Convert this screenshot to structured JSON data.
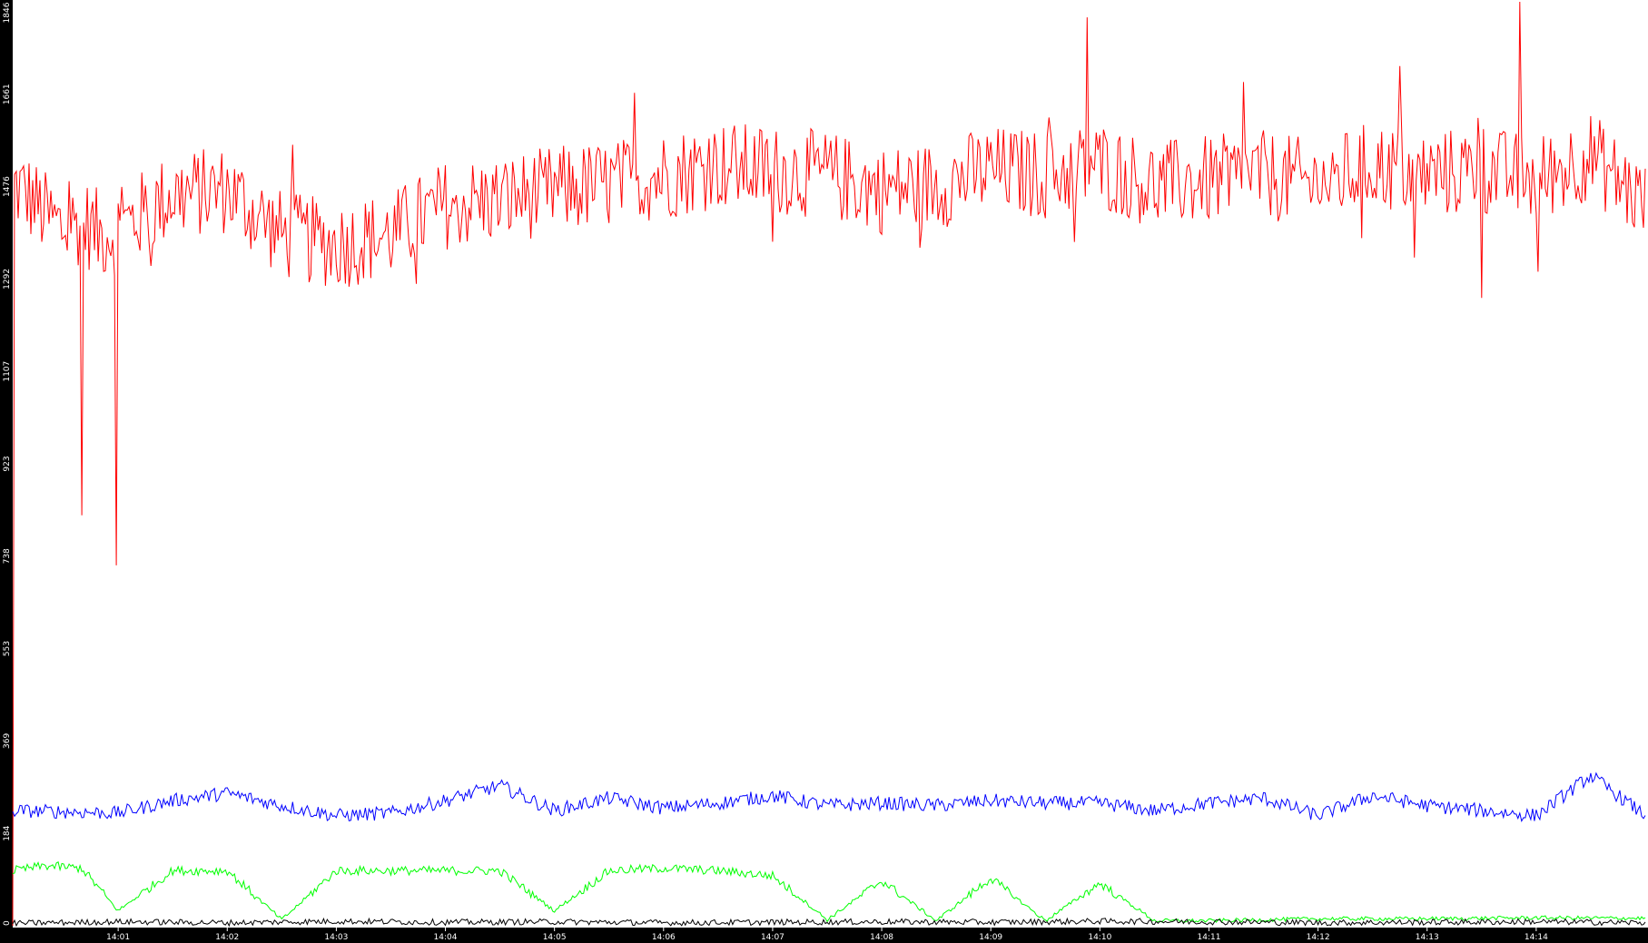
{
  "chart_data": {
    "type": "line",
    "grid": false,
    "legend": "none",
    "background_color": "#ffffff",
    "axis_color": "#000000",
    "y_axis": {
      "ylim": [
        0,
        1846
      ],
      "tick_labels": [
        "0",
        "184",
        "369",
        "553",
        "738",
        "923",
        "1107",
        "1292",
        "1476",
        "1661",
        "1846"
      ]
    },
    "x_axis": {
      "xlim": [
        "14:00:02",
        "14:15:00"
      ],
      "tick_labels": [
        "14:01",
        "14:02",
        "14:03",
        "14:04",
        "14:05",
        "14:06",
        "14:07",
        "14:08",
        "14:09",
        "14:10",
        "14:11",
        "14:12",
        "14:13",
        "14:14"
      ]
    },
    "series": [
      {
        "color": "#ff0000",
        "x": [
          "14:00:02",
          "14:00:10",
          "14:00:20",
          "14:00:30",
          "14:00:40",
          "14:00:50",
          "14:01:00",
          "14:01:30",
          "14:02:00",
          "14:02:30",
          "14:03:00",
          "14:03:30",
          "14:04:00",
          "14:04:30",
          "14:05:00",
          "14:05:30",
          "14:06:00",
          "14:06:30",
          "14:07:00",
          "14:07:30",
          "14:08:00",
          "14:08:30",
          "14:09:00",
          "14:09:30",
          "14:10:00",
          "14:10:30",
          "14:11:00",
          "14:11:30",
          "14:12:00",
          "14:12:30",
          "14:13:00",
          "14:13:30",
          "14:14:00",
          "14:14:30",
          "14:15:00"
        ],
        "values": [
          1480,
          1460,
          1420,
          1390,
          1410,
          1380,
          1390,
          1460,
          1470,
          1380,
          1360,
          1380,
          1440,
          1450,
          1470,
          1480,
          1500,
          1520,
          1510,
          1500,
          1470,
          1480,
          1510,
          1500,
          1520,
          1480,
          1490,
          1500,
          1480,
          1520,
          1500,
          1510,
          1490,
          1540,
          1440
        ],
        "spikes": [
          {
            "x": "14:00:40",
            "value": 820
          },
          {
            "x": "14:00:59",
            "value": 720
          },
          {
            "x": "14:13:51",
            "value": 1846
          },
          {
            "x": "14:09:53",
            "value": 1815
          }
        ]
      },
      {
        "color": "#0000ff",
        "x": [
          "14:00:02",
          "14:00:30",
          "14:01:00",
          "14:01:30",
          "14:02:00",
          "14:02:30",
          "14:03:00",
          "14:03:30",
          "14:04:00",
          "14:04:30",
          "14:05:00",
          "14:05:30",
          "14:06:00",
          "14:06:30",
          "14:07:00",
          "14:07:30",
          "14:08:00",
          "14:08:30",
          "14:09:00",
          "14:09:30",
          "14:10:00",
          "14:10:30",
          "14:11:00",
          "14:11:30",
          "14:12:00",
          "14:12:30",
          "14:13:00",
          "14:13:30",
          "14:14:00",
          "14:14:30",
          "14:15:00"
        ],
        "values": [
          230,
          228,
          225,
          250,
          265,
          240,
          220,
          225,
          250,
          280,
          230,
          255,
          235,
          245,
          260,
          240,
          245,
          240,
          250,
          245,
          245,
          230,
          245,
          255,
          220,
          260,
          240,
          230,
          220,
          300,
          220
        ]
      },
      {
        "color": "#00ff00",
        "x": [
          "14:00:02",
          "14:00:20",
          "14:00:40",
          "14:01:00",
          "14:01:30",
          "14:02:00",
          "14:02:30",
          "14:03:00",
          "14:03:30",
          "14:04:00",
          "14:04:30",
          "14:05:00",
          "14:05:30",
          "14:06:00",
          "14:06:30",
          "14:07:00",
          "14:07:30",
          "14:08:00",
          "14:08:30",
          "14:09:00",
          "14:09:30",
          "14:10:00",
          "14:10:30",
          "14:11:00",
          "14:12:00",
          "14:13:00",
          "14:14:00",
          "14:15:00"
        ],
        "values": [
          110,
          120,
          115,
          30,
          110,
          110,
          12,
          110,
          110,
          110,
          110,
          30,
          110,
          115,
          110,
          100,
          12,
          90,
          10,
          95,
          10,
          85,
          10,
          10,
          14,
          14,
          16,
          15
        ]
      },
      {
        "color": "#000000",
        "x": [
          "14:00:02",
          "14:01:00",
          "14:02:00",
          "14:03:00",
          "14:04:00",
          "14:05:00",
          "14:06:00",
          "14:07:00",
          "14:08:00",
          "14:09:00",
          "14:10:00",
          "14:11:00",
          "14:12:00",
          "14:13:00",
          "14:14:00",
          "14:15:00"
        ],
        "values": [
          5,
          8,
          6,
          9,
          7,
          8,
          6,
          7,
          8,
          7,
          9,
          8,
          6,
          7,
          8,
          6
        ]
      }
    ]
  }
}
